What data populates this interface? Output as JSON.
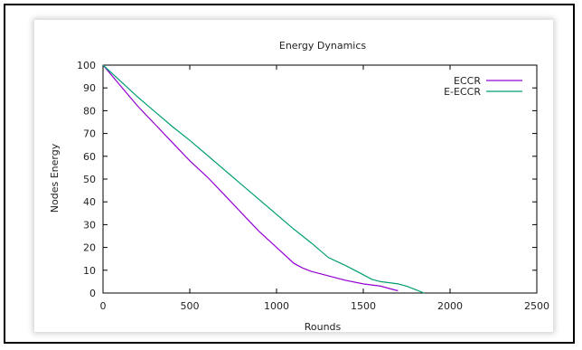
{
  "chart_data": {
    "type": "line",
    "title": "Energy Dynamics",
    "xlabel": "Rounds",
    "ylabel": "Nodes Energy",
    "xlim": [
      0,
      2500
    ],
    "ylim": [
      0,
      100
    ],
    "xticks": [
      0,
      500,
      1000,
      1500,
      2000,
      2500
    ],
    "yticks": [
      0,
      10,
      20,
      30,
      40,
      50,
      60,
      70,
      80,
      90,
      100
    ],
    "grid": false,
    "legend_position": "top-right",
    "series": [
      {
        "name": "ECCR",
        "color": "#9400d3",
        "x": [
          0,
          100,
          200,
          300,
          400,
          500,
          600,
          700,
          800,
          900,
          1000,
          1100,
          1150,
          1200,
          1300,
          1400,
          1500,
          1600,
          1650,
          1700
        ],
        "y": [
          100,
          91,
          82,
          74,
          66,
          58,
          51,
          43,
          35,
          27,
          20,
          13,
          11,
          9.5,
          7.5,
          5.5,
          4,
          3,
          2,
          1
        ]
      },
      {
        "name": "E-ECCR",
        "color": "#009e73",
        "x": [
          0,
          100,
          200,
          300,
          400,
          500,
          600,
          700,
          800,
          900,
          1000,
          1100,
          1200,
          1300,
          1400,
          1500,
          1550,
          1600,
          1700,
          1750,
          1800,
          1850
        ],
        "y": [
          100,
          93,
          86,
          79.5,
          73,
          67,
          60.5,
          54,
          47.5,
          41,
          34.5,
          28,
          22,
          15.5,
          12,
          8,
          6,
          5,
          4,
          3,
          1.5,
          0
        ]
      }
    ]
  }
}
